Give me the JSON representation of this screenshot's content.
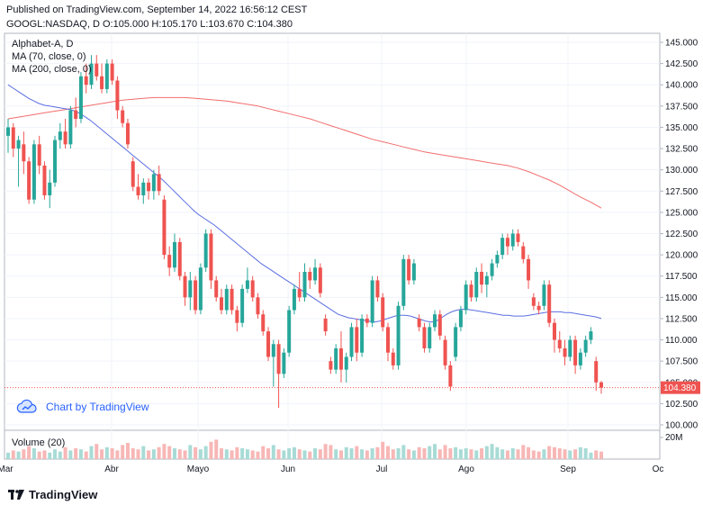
{
  "header": {
    "published": "Published on TradingView.com, September 14, 2022 16:56:12 CEST",
    "quote": "GOOGL:NASDAQ, D O:105.000 H:105.170 L:103.670 C:104.380"
  },
  "legend": {
    "symbol": "Alphabet-A, D",
    "ma70": "MA (70, close, 0)",
    "ma200": "MA (200, close, 0)"
  },
  "volume_label": "Volume (20)",
  "chart_by": "Chart by TradingView",
  "brand": "TradingView",
  "colors": {
    "up": "#26a69a",
    "down": "#ef5350",
    "ma70": "#5b6ee1",
    "ma200": "#f26d6d",
    "last_price_bg": "#ef5350",
    "accent": "#2962ff"
  },
  "chart_data": {
    "type": "candlestick",
    "y_ticks": [
      "145.000",
      "142.500",
      "140.000",
      "137.500",
      "135.000",
      "132.500",
      "130.000",
      "127.500",
      "125.000",
      "122.500",
      "120.000",
      "117.500",
      "115.000",
      "112.500",
      "110.000",
      "107.500",
      "105.000",
      "102.500",
      "100.000"
    ],
    "ylim": [
      100,
      145
    ],
    "x_labels": [
      "Mar",
      "Abr",
      "Mayo",
      "Jun",
      "Jul",
      "Ago",
      "Sep",
      "Oc"
    ],
    "last_price": "104.380",
    "volume_tick": "20M",
    "candles": [
      {
        "o": 134.0,
        "h": 136.0,
        "l": 132.0,
        "c": 135.0
      },
      {
        "o": 135.0,
        "h": 135.5,
        "l": 131.5,
        "c": 132.5
      },
      {
        "o": 132.5,
        "h": 134.0,
        "l": 128.0,
        "c": 133.5
      },
      {
        "o": 133.0,
        "h": 134.5,
        "l": 129.5,
        "c": 131.0
      },
      {
        "o": 131.0,
        "h": 131.5,
        "l": 126.0,
        "c": 126.5
      },
      {
        "o": 126.5,
        "h": 133.5,
        "l": 126.0,
        "c": 133.0
      },
      {
        "o": 133.0,
        "h": 134.0,
        "l": 129.5,
        "c": 130.5
      },
      {
        "o": 130.5,
        "h": 131.0,
        "l": 126.5,
        "c": 127.0
      },
      {
        "o": 127.0,
        "h": 130.0,
        "l": 125.5,
        "c": 128.5
      },
      {
        "o": 128.5,
        "h": 134.0,
        "l": 128.0,
        "c": 133.5
      },
      {
        "o": 133.5,
        "h": 135.5,
        "l": 132.5,
        "c": 134.5
      },
      {
        "o": 134.5,
        "h": 136.0,
        "l": 132.5,
        "c": 133.0
      },
      {
        "o": 133.0,
        "h": 137.5,
        "l": 132.5,
        "c": 137.0
      },
      {
        "o": 137.0,
        "h": 138.5,
        "l": 135.0,
        "c": 136.0
      },
      {
        "o": 136.0,
        "h": 141.5,
        "l": 135.5,
        "c": 141.0
      },
      {
        "o": 141.0,
        "h": 142.5,
        "l": 139.0,
        "c": 140.0
      },
      {
        "o": 140.0,
        "h": 143.5,
        "l": 139.5,
        "c": 142.5
      },
      {
        "o": 142.5,
        "h": 143.5,
        "l": 140.5,
        "c": 141.0
      },
      {
        "o": 141.0,
        "h": 142.5,
        "l": 139.0,
        "c": 139.5
      },
      {
        "o": 139.5,
        "h": 143.0,
        "l": 139.0,
        "c": 142.5
      },
      {
        "o": 142.5,
        "h": 143.0,
        "l": 140.0,
        "c": 140.5
      },
      {
        "o": 140.5,
        "h": 141.0,
        "l": 136.0,
        "c": 137.0
      },
      {
        "o": 137.0,
        "h": 137.5,
        "l": 135.0,
        "c": 135.5
      },
      {
        "o": 135.5,
        "h": 136.0,
        "l": 132.5,
        "c": 133.0
      },
      {
        "o": 131.0,
        "h": 131.5,
        "l": 127.5,
        "c": 128.0
      },
      {
        "o": 128.0,
        "h": 129.5,
        "l": 126.5,
        "c": 127.0
      },
      {
        "o": 127.0,
        "h": 129.0,
        "l": 126.0,
        "c": 128.5
      },
      {
        "o": 128.5,
        "h": 129.0,
        "l": 126.5,
        "c": 127.5
      },
      {
        "o": 127.5,
        "h": 130.0,
        "l": 126.5,
        "c": 129.5
      },
      {
        "o": 129.5,
        "h": 130.5,
        "l": 127.0,
        "c": 127.5
      },
      {
        "o": 126.5,
        "h": 127.0,
        "l": 119.5,
        "c": 120.0
      },
      {
        "o": 120.0,
        "h": 121.0,
        "l": 117.5,
        "c": 118.5
      },
      {
        "o": 118.5,
        "h": 122.5,
        "l": 118.0,
        "c": 121.5
      },
      {
        "o": 121.5,
        "h": 122.0,
        "l": 117.0,
        "c": 117.5
      },
      {
        "o": 117.5,
        "h": 118.0,
        "l": 114.0,
        "c": 115.0
      },
      {
        "o": 115.0,
        "h": 118.0,
        "l": 113.5,
        "c": 117.0
      },
      {
        "o": 117.0,
        "h": 117.5,
        "l": 113.0,
        "c": 113.5
      },
      {
        "o": 113.5,
        "h": 119.0,
        "l": 113.0,
        "c": 118.5
      },
      {
        "o": 118.5,
        "h": 123.0,
        "l": 118.0,
        "c": 122.5
      },
      {
        "o": 122.5,
        "h": 123.0,
        "l": 116.0,
        "c": 117.0
      },
      {
        "o": 117.0,
        "h": 117.5,
        "l": 114.5,
        "c": 115.0
      },
      {
        "o": 115.0,
        "h": 116.0,
        "l": 113.0,
        "c": 113.5
      },
      {
        "o": 113.5,
        "h": 116.5,
        "l": 113.0,
        "c": 116.0
      },
      {
        "o": 116.0,
        "h": 116.5,
        "l": 113.0,
        "c": 113.5
      },
      {
        "o": 113.5,
        "h": 114.0,
        "l": 111.0,
        "c": 112.0
      },
      {
        "o": 112.0,
        "h": 116.5,
        "l": 111.5,
        "c": 116.0
      },
      {
        "o": 116.0,
        "h": 118.5,
        "l": 115.5,
        "c": 117.0
      },
      {
        "o": 117.0,
        "h": 117.5,
        "l": 114.5,
        "c": 115.0
      },
      {
        "o": 115.0,
        "h": 115.5,
        "l": 112.5,
        "c": 113.0
      },
      {
        "o": 113.0,
        "h": 113.5,
        "l": 110.5,
        "c": 111.0
      },
      {
        "o": 111.0,
        "h": 111.5,
        "l": 107.5,
        "c": 108.0
      },
      {
        "o": 108.0,
        "h": 110.0,
        "l": 104.5,
        "c": 109.5
      },
      {
        "o": 109.5,
        "h": 110.0,
        "l": 102.0,
        "c": 106.0
      },
      {
        "o": 106.0,
        "h": 109.0,
        "l": 105.5,
        "c": 108.5
      },
      {
        "o": 108.5,
        "h": 114.0,
        "l": 108.0,
        "c": 113.5
      },
      {
        "o": 113.5,
        "h": 116.5,
        "l": 113.0,
        "c": 116.0
      },
      {
        "o": 116.0,
        "h": 118.0,
        "l": 114.5,
        "c": 115.0
      },
      {
        "o": 115.0,
        "h": 119.0,
        "l": 114.5,
        "c": 118.0
      },
      {
        "o": 118.0,
        "h": 118.5,
        "l": 116.0,
        "c": 117.0
      },
      {
        "o": 117.0,
        "h": 119.5,
        "l": 116.5,
        "c": 118.5
      },
      {
        "o": 118.5,
        "h": 119.0,
        "l": 115.0,
        "c": 115.5
      },
      {
        "o": 112.5,
        "h": 113.0,
        "l": 110.5,
        "c": 111.0
      },
      {
        "o": 107.5,
        "h": 108.0,
        "l": 106.0,
        "c": 106.5
      },
      {
        "o": 106.5,
        "h": 109.5,
        "l": 106.0,
        "c": 109.0
      },
      {
        "o": 109.0,
        "h": 111.0,
        "l": 105.0,
        "c": 106.5
      },
      {
        "o": 106.5,
        "h": 108.5,
        "l": 105.0,
        "c": 108.0
      },
      {
        "o": 108.0,
        "h": 112.0,
        "l": 107.5,
        "c": 111.5
      },
      {
        "o": 111.5,
        "h": 112.5,
        "l": 107.5,
        "c": 108.5
      },
      {
        "o": 108.5,
        "h": 113.0,
        "l": 108.0,
        "c": 112.5
      },
      {
        "o": 112.5,
        "h": 113.0,
        "l": 111.5,
        "c": 112.0
      },
      {
        "o": 112.0,
        "h": 117.5,
        "l": 111.5,
        "c": 117.0
      },
      {
        "o": 117.0,
        "h": 117.5,
        "l": 114.5,
        "c": 115.0
      },
      {
        "o": 115.0,
        "h": 115.5,
        "l": 111.0,
        "c": 111.5
      },
      {
        "o": 111.5,
        "h": 112.0,
        "l": 107.5,
        "c": 108.5
      },
      {
        "o": 108.5,
        "h": 109.0,
        "l": 106.5,
        "c": 107.0
      },
      {
        "o": 107.0,
        "h": 114.5,
        "l": 106.5,
        "c": 114.0
      },
      {
        "o": 114.0,
        "h": 120.0,
        "l": 113.5,
        "c": 119.5
      },
      {
        "o": 119.5,
        "h": 120.0,
        "l": 116.5,
        "c": 117.0
      },
      {
        "o": 117.0,
        "h": 119.5,
        "l": 116.5,
        "c": 119.0
      },
      {
        "o": 112.5,
        "h": 113.0,
        "l": 111.0,
        "c": 111.5
      },
      {
        "o": 111.5,
        "h": 112.0,
        "l": 108.5,
        "c": 109.0
      },
      {
        "o": 109.0,
        "h": 112.0,
        "l": 108.5,
        "c": 111.5
      },
      {
        "o": 111.5,
        "h": 113.5,
        "l": 111.0,
        "c": 113.0
      },
      {
        "o": 113.0,
        "h": 113.5,
        "l": 110.0,
        "c": 110.5
      },
      {
        "o": 110.0,
        "h": 110.5,
        "l": 106.5,
        "c": 107.0
      },
      {
        "o": 107.0,
        "h": 107.5,
        "l": 104.0,
        "c": 104.5
      },
      {
        "o": 108.0,
        "h": 112.0,
        "l": 107.5,
        "c": 111.5
      },
      {
        "o": 111.5,
        "h": 114.0,
        "l": 111.0,
        "c": 113.5
      },
      {
        "o": 113.5,
        "h": 117.0,
        "l": 113.0,
        "c": 116.5
      },
      {
        "o": 116.5,
        "h": 117.0,
        "l": 114.5,
        "c": 115.0
      },
      {
        "o": 115.0,
        "h": 118.5,
        "l": 114.5,
        "c": 118.0
      },
      {
        "o": 118.0,
        "h": 119.0,
        "l": 115.5,
        "c": 116.5
      },
      {
        "o": 116.5,
        "h": 118.0,
        "l": 115.0,
        "c": 117.5
      },
      {
        "o": 117.5,
        "h": 119.5,
        "l": 117.0,
        "c": 119.0
      },
      {
        "o": 119.0,
        "h": 120.5,
        "l": 118.5,
        "c": 120.0
      },
      {
        "o": 120.0,
        "h": 122.5,
        "l": 119.5,
        "c": 122.0
      },
      {
        "o": 122.0,
        "h": 122.5,
        "l": 120.0,
        "c": 121.0
      },
      {
        "o": 121.0,
        "h": 123.0,
        "l": 120.5,
        "c": 122.5
      },
      {
        "o": 122.5,
        "h": 123.0,
        "l": 121.0,
        "c": 121.5
      },
      {
        "o": 121.0,
        "h": 121.5,
        "l": 119.0,
        "c": 119.5
      },
      {
        "o": 119.5,
        "h": 120.0,
        "l": 116.0,
        "c": 117.0
      },
      {
        "o": 115.0,
        "h": 115.5,
        "l": 113.5,
        "c": 114.0
      },
      {
        "o": 114.0,
        "h": 114.5,
        "l": 113.0,
        "c": 113.5
      },
      {
        "o": 114.0,
        "h": 117.0,
        "l": 113.5,
        "c": 116.5
      },
      {
        "o": 116.5,
        "h": 117.0,
        "l": 111.5,
        "c": 112.0
      },
      {
        "o": 112.0,
        "h": 112.5,
        "l": 108.5,
        "c": 110.0
      },
      {
        "o": 110.0,
        "h": 111.0,
        "l": 108.5,
        "c": 109.0
      },
      {
        "o": 109.0,
        "h": 110.0,
        "l": 107.0,
        "c": 108.0
      },
      {
        "o": 108.0,
        "h": 110.5,
        "l": 107.5,
        "c": 110.0
      },
      {
        "o": 110.0,
        "h": 110.5,
        "l": 106.0,
        "c": 107.0
      },
      {
        "o": 107.0,
        "h": 109.0,
        "l": 106.5,
        "c": 108.5
      },
      {
        "o": 108.5,
        "h": 110.5,
        "l": 108.0,
        "c": 110.0
      },
      {
        "o": 110.0,
        "h": 111.5,
        "l": 109.5,
        "c": 111.0
      },
      {
        "o": 107.5,
        "h": 108.0,
        "l": 104.0,
        "c": 105.0
      },
      {
        "o": 105.0,
        "h": 105.17,
        "l": 103.67,
        "c": 104.38
      }
    ],
    "ma70": [
      140,
      139.6,
      139.2,
      138.8,
      138.4,
      138.1,
      137.8,
      137.6,
      137.5,
      137.4,
      137.3,
      137.2,
      137.1,
      136.9,
      136.6,
      136.2,
      135.8,
      135.3,
      134.8,
      134.3,
      133.8,
      133.3,
      132.8,
      132.3,
      131.8,
      131.3,
      130.8,
      130.3,
      129.8,
      129.3,
      128.8,
      128.2,
      127.6,
      127.0,
      126.4,
      125.8,
      125.2,
      124.7,
      124.3,
      123.9,
      123.5,
      123.0,
      122.5,
      122.0,
      121.5,
      121.0,
      120.5,
      120.0,
      119.5,
      119.0,
      118.6,
      118.2,
      117.8,
      117.4,
      117.0,
      116.6,
      116.2,
      115.8,
      115.4,
      115.0,
      114.6,
      114.2,
      113.8,
      113.4,
      113.0,
      112.8,
      112.6,
      112.5,
      112.4,
      112.3,
      112.2,
      112.1,
      112.2,
      112.4,
      112.6,
      112.8,
      112.9,
      112.9,
      112.8,
      112.6,
      112.4,
      112.2,
      112.1,
      112.2,
      112.6,
      113.0,
      113.3,
      113.5,
      113.6,
      113.6,
      113.5,
      113.4,
      113.3,
      113.2,
      113.1,
      113.0,
      112.9,
      112.9,
      112.8,
      112.8,
      112.8,
      112.9,
      113.0,
      113.1,
      113.2,
      113.3,
      113.3,
      113.3,
      113.2,
      113.2,
      113.1,
      113.0,
      112.9,
      112.8,
      112.7,
      112.5
    ],
    "ma200": [
      136.0,
      136.2,
      136.4,
      136.6,
      136.8,
      137.0,
      137.2,
      137.4,
      137.6,
      137.8,
      138.0,
      138.2,
      138.3,
      138.4,
      138.5,
      138.5,
      138.5,
      138.5,
      138.4,
      138.3,
      138.2,
      138.1,
      137.9,
      137.7,
      137.5,
      137.2,
      136.9,
      136.6,
      136.3,
      136.0,
      135.6,
      135.2,
      134.8,
      134.4,
      134.0,
      133.6,
      133.3,
      133.0,
      132.7,
      132.4,
      132.1,
      131.9,
      131.7,
      131.5,
      131.3,
      131.1,
      130.9,
      130.7,
      130.5,
      130.2,
      129.8,
      129.3,
      128.8,
      128.2,
      127.5,
      126.8,
      126.2,
      125.5
    ]
  }
}
